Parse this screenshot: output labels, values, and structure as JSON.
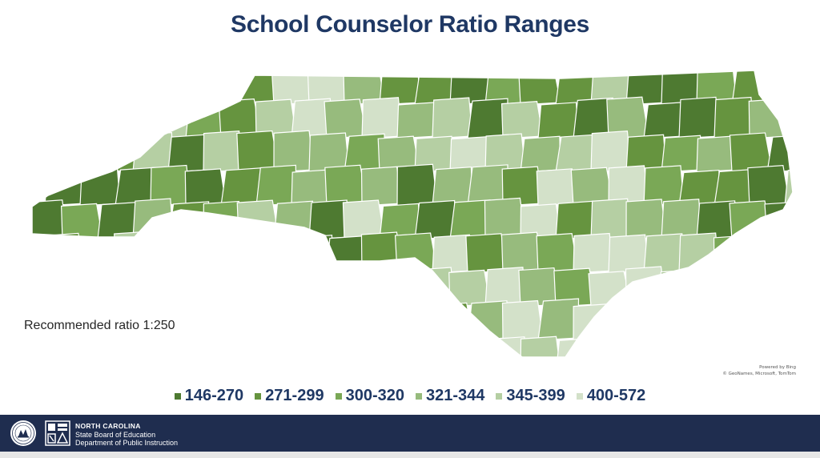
{
  "title": "School Counselor Ratio Ranges",
  "recommended": "Recommended ratio 1:250",
  "attribution": {
    "line1": "Powered by Bing",
    "line2": "© GeoNames, Microsoft, TomTom"
  },
  "legend": [
    {
      "label": "146-270",
      "color": "#4e7a31"
    },
    {
      "label": "271-299",
      "color": "#66943f"
    },
    {
      "label": "300-320",
      "color": "#7aa856"
    },
    {
      "label": "321-344",
      "color": "#97bb7d"
    },
    {
      "label": "345-399",
      "color": "#b5cfa3"
    },
    {
      "label": "400-572",
      "color": "#d3e1c9"
    }
  ],
  "footer": {
    "org": "NORTH CAROLINA",
    "line2": "State Board of Education",
    "line3": "Department of Public Instruction"
  },
  "colors": {
    "title": "#1f3864",
    "footer_bg": "#1f2d4f",
    "county_border": "#ffffff"
  }
}
